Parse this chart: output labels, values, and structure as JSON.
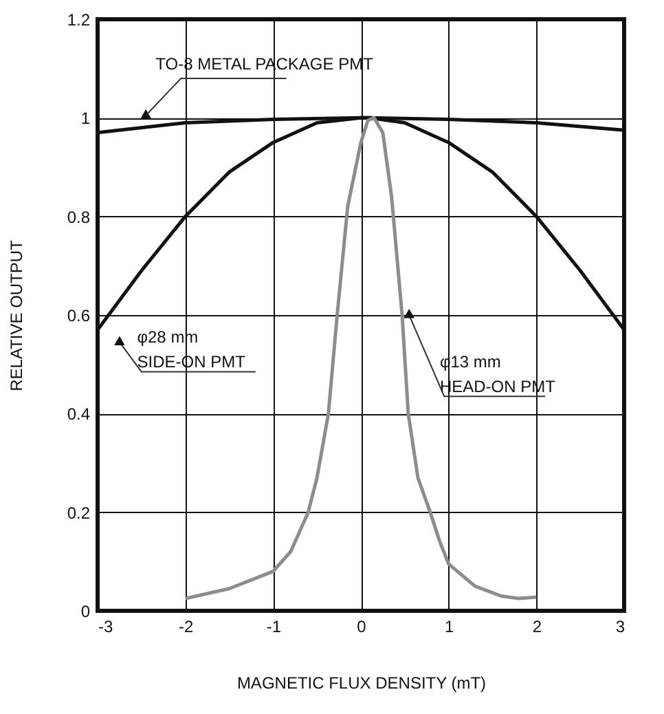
{
  "chart_data": {
    "type": "line",
    "xlabel": "MAGNETIC FLUX DENSITY (mT)",
    "ylabel": "RELATIVE OUTPUT",
    "xlim": [
      -3,
      3
    ],
    "ylim": [
      0,
      1.2
    ],
    "xticks": [
      -3,
      -2,
      -1,
      0,
      1,
      2,
      3
    ],
    "yticks": [
      0,
      0.2,
      0.4,
      0.6,
      0.8,
      1,
      1.2
    ],
    "grid": true,
    "marker": "none",
    "line_style": "solid",
    "series": [
      {
        "color": "#111111",
        "x": [
          -3,
          -2,
          -1,
          0,
          0.1,
          1,
          2,
          3
        ],
        "values": [
          0.97,
          0.99,
          0.997,
          1.0,
          1.0,
          0.997,
          0.99,
          0.975
        ]
      },
      {
        "color": "#111111",
        "x": [
          -3,
          -2.5,
          -2,
          -1.5,
          -1,
          -0.5,
          0,
          0.1,
          0.5,
          1,
          1.5,
          2,
          2.5,
          3
        ],
        "values": [
          0.57,
          0.69,
          0.8,
          0.89,
          0.95,
          0.99,
          1.0,
          1.0,
          0.99,
          0.95,
          0.89,
          0.8,
          0.69,
          0.57
        ]
      },
      {
        "color": "#8c8c8c",
        "x": [
          -2,
          -1.5,
          -1,
          -0.8,
          -0.6,
          -0.5,
          -0.37,
          -0.27,
          -0.15,
          0,
          0.08,
          0.15,
          0.25,
          0.35,
          0.47,
          0.54,
          0.65,
          0.79,
          0.9,
          1,
          1.3,
          1.6,
          1.8,
          2
        ],
        "values": [
          0.025,
          0.045,
          0.08,
          0.12,
          0.2,
          0.27,
          0.4,
          0.6,
          0.82,
          0.95,
          0.995,
          1.0,
          0.97,
          0.84,
          0.6,
          0.4,
          0.27,
          0.2,
          0.14,
          0.095,
          0.05,
          0.03,
          0.025,
          0.028
        ]
      }
    ],
    "annotations": [
      "TO-8 METAL PACKAGE PMT",
      "φ28 mm",
      "SIDE-ON PMT",
      "φ13 mm",
      "HEAD-ON PMT"
    ]
  }
}
